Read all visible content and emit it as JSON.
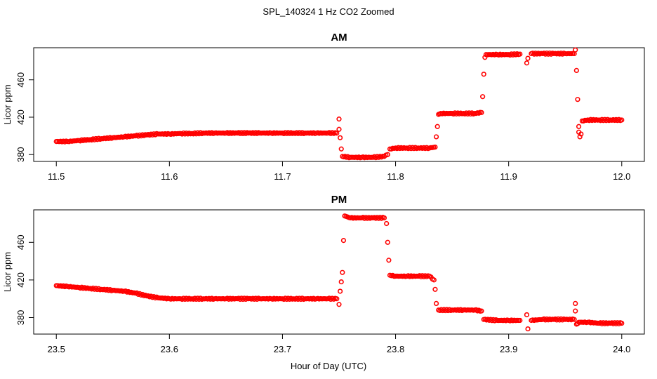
{
  "figure": {
    "title": "SPL_140324  1 Hz CO2 Zoomed",
    "xlabel": "Hour of Day (UTC)"
  },
  "chart_data": [
    {
      "type": "scatter",
      "title": "AM",
      "xlabel": "",
      "ylabel": "Licor ppm",
      "xlim": [
        11.5,
        12.0
      ],
      "ylim": [
        375,
        492
      ],
      "xticks": [
        "11.5",
        "11.6",
        "11.7",
        "11.8",
        "11.9",
        "12.0"
      ],
      "yticks": [
        "380",
        "420",
        "460"
      ],
      "color": "#ff0000",
      "marker": "open-circle",
      "grid": false,
      "series": [
        {
          "points": [
            [
              11.5,
              394
            ],
            [
              11.51,
              394
            ],
            [
              11.52,
              395
            ],
            [
              11.53,
              396
            ],
            [
              11.54,
              397
            ],
            [
              11.55,
              398
            ],
            [
              11.56,
              399
            ],
            [
              11.57,
              400
            ],
            [
              11.58,
              401
            ],
            [
              11.59,
              402
            ],
            [
              11.6,
              402
            ],
            [
              11.61,
              402.5
            ],
            [
              11.62,
              402.5
            ],
            [
              11.63,
              403
            ],
            [
              11.64,
              403
            ],
            [
              11.65,
              403
            ],
            [
              11.66,
              403
            ],
            [
              11.67,
              403
            ],
            [
              11.68,
              403
            ],
            [
              11.69,
              403
            ],
            [
              11.7,
              403
            ],
            [
              11.71,
              403
            ],
            [
              11.72,
              403
            ],
            [
              11.73,
              403
            ],
            [
              11.74,
              403
            ],
            [
              11.748,
              403
            ],
            [
              11.75,
              418
            ],
            [
              11.75,
              407
            ],
            [
              11.751,
              398
            ],
            [
              11.752,
              386
            ],
            [
              11.753,
              378
            ],
            [
              11.76,
              377
            ],
            [
              11.77,
              377
            ],
            [
              11.78,
              377
            ],
            [
              11.79,
              378
            ],
            [
              11.793,
              380
            ],
            [
              11.795,
              386
            ],
            [
              11.8,
              387
            ],
            [
              11.81,
              387
            ],
            [
              11.82,
              387
            ],
            [
              11.83,
              387
            ],
            [
              11.835,
              388
            ],
            [
              11.836,
              399
            ],
            [
              11.837,
              410
            ],
            [
              11.838,
              423
            ],
            [
              11.84,
              424
            ],
            [
              11.85,
              424
            ],
            [
              11.86,
              424
            ],
            [
              11.87,
              424
            ],
            [
              11.876,
              425
            ],
            [
              11.877,
              442
            ],
            [
              11.878,
              466
            ],
            [
              11.879,
              484
            ],
            [
              11.88,
              487
            ],
            [
              11.89,
              487
            ],
            [
              11.9,
              487
            ],
            [
              11.91,
              487.5
            ],
            [
              11.916,
              478
            ],
            [
              11.917,
              483
            ],
            [
              11.92,
              488
            ],
            [
              11.93,
              488
            ],
            [
              11.94,
              488
            ],
            [
              11.95,
              488
            ],
            [
              11.958,
              488
            ],
            [
              11.959,
              492
            ],
            [
              11.96,
              470
            ],
            [
              11.961,
              439
            ],
            [
              11.962,
              410
            ],
            [
              11.962,
              404
            ],
            [
              11.963,
              399
            ],
            [
              11.964,
              402
            ],
            [
              11.965,
              416
            ],
            [
              11.97,
              417
            ],
            [
              11.98,
              417
            ],
            [
              11.99,
              417
            ],
            [
              12.0,
              417
            ]
          ]
        }
      ]
    },
    {
      "type": "scatter",
      "title": "PM",
      "xlabel": "",
      "ylabel": "Licor ppm",
      "xlim": [
        23.5,
        24.0
      ],
      "ylim": [
        365,
        492
      ],
      "xticks": [
        "23.5",
        "23.6",
        "23.7",
        "23.8",
        "23.9",
        "24.0"
      ],
      "yticks": [
        "380",
        "420",
        "460"
      ],
      "color": "#ff0000",
      "marker": "open-circle",
      "grid": false,
      "series": [
        {
          "points": [
            [
              23.5,
              414
            ],
            [
              23.51,
              413
            ],
            [
              23.52,
              412
            ],
            [
              23.53,
              411
            ],
            [
              23.54,
              410
            ],
            [
              23.55,
              409
            ],
            [
              23.56,
              408
            ],
            [
              23.57,
              406
            ],
            [
              23.58,
              403
            ],
            [
              23.59,
              401
            ],
            [
              23.6,
              400
            ],
            [
              23.61,
              400
            ],
            [
              23.62,
              400
            ],
            [
              23.63,
              400
            ],
            [
              23.64,
              400
            ],
            [
              23.65,
              400
            ],
            [
              23.66,
              400
            ],
            [
              23.67,
              400
            ],
            [
              23.68,
              400
            ],
            [
              23.69,
              400
            ],
            [
              23.7,
              400
            ],
            [
              23.71,
              400
            ],
            [
              23.72,
              400
            ],
            [
              23.73,
              400
            ],
            [
              23.74,
              400
            ],
            [
              23.748,
              400
            ],
            [
              23.75,
              394
            ],
            [
              23.751,
              408
            ],
            [
              23.752,
              418
            ],
            [
              23.753,
              428
            ],
            [
              23.754,
              462
            ],
            [
              23.755,
              488
            ],
            [
              23.76,
              486
            ],
            [
              23.77,
              486
            ],
            [
              23.78,
              486
            ],
            [
              23.79,
              486
            ],
            [
              23.792,
              480
            ],
            [
              23.793,
              460
            ],
            [
              23.794,
              441
            ],
            [
              23.795,
              425
            ],
            [
              23.8,
              424
            ],
            [
              23.81,
              424
            ],
            [
              23.82,
              424
            ],
            [
              23.83,
              424
            ],
            [
              23.834,
              420
            ],
            [
              23.835,
              410
            ],
            [
              23.836,
              395
            ],
            [
              23.838,
              388
            ],
            [
              23.85,
              388
            ],
            [
              23.86,
              388
            ],
            [
              23.87,
              388
            ],
            [
              23.876,
              387
            ],
            [
              23.878,
              378
            ],
            [
              23.89,
              377
            ],
            [
              23.9,
              377
            ],
            [
              23.91,
              377
            ],
            [
              23.916,
              383
            ],
            [
              23.917,
              368
            ],
            [
              23.92,
              377
            ],
            [
              23.93,
              378
            ],
            [
              23.94,
              378
            ],
            [
              23.95,
              378
            ],
            [
              23.958,
              378
            ],
            [
              23.959,
              395
            ],
            [
              23.959,
              387
            ],
            [
              23.96,
              373
            ],
            [
              23.962,
              375
            ],
            [
              23.97,
              375
            ],
            [
              23.98,
              374
            ],
            [
              23.99,
              374
            ],
            [
              24.0,
              374
            ]
          ]
        }
      ]
    }
  ]
}
